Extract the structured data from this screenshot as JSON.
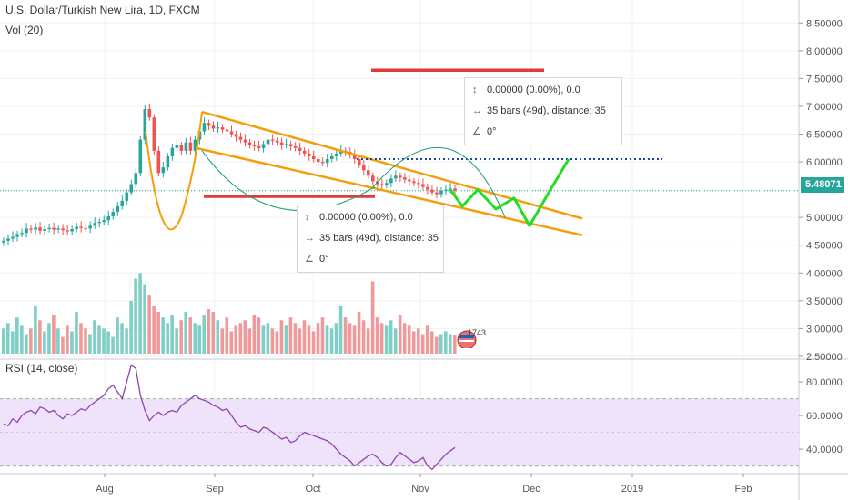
{
  "header": {
    "title": "U.S. Dollar/Turkish New Lira, 1D, FXCM",
    "volume_label": "Vol (20)",
    "rsi_label": "RSI (14, close)"
  },
  "chart_data": [
    {
      "type": "candlestick",
      "title": "U.S. Dollar/Turkish New Lira, 1D, FXCM",
      "y_ticks": [
        "8.50000",
        "8.00000",
        "7.50000",
        "7.00000",
        "6.50000",
        "6.00000",
        "5.48071",
        "5.00000",
        "4.50000",
        "4.00000",
        "3.50000",
        "3.00000",
        "2.50000"
      ],
      "ylim": [
        2.45,
        8.75
      ],
      "last_price": "5.48071",
      "x_ticks": [
        "Aug",
        "Sep",
        "Oct",
        "Nov",
        "Dec",
        "2019",
        "Feb"
      ],
      "close_series": [
        4.58,
        4.62,
        4.65,
        4.7,
        4.72,
        4.8,
        4.78,
        4.82,
        4.76,
        4.79,
        4.81,
        4.78,
        4.8,
        4.77,
        4.75,
        4.79,
        4.83,
        4.81,
        4.8,
        4.85,
        4.9,
        4.92,
        4.95,
        5.02,
        5.1,
        5.2,
        5.3,
        5.45,
        5.6,
        5.8,
        6.4,
        6.95,
        6.8,
        6.2,
        5.8,
        5.9,
        6.1,
        6.25,
        6.3,
        6.2,
        6.35,
        6.2,
        6.4,
        6.55,
        6.7,
        6.65,
        6.6,
        6.62,
        6.58,
        6.55,
        6.5,
        6.45,
        6.4,
        6.35,
        6.3,
        6.28,
        6.25,
        6.32,
        6.4,
        6.38,
        6.35,
        6.3,
        6.32,
        6.28,
        6.25,
        6.2,
        6.15,
        6.1,
        6.05,
        6.0,
        5.98,
        6.05,
        6.1,
        6.15,
        6.2,
        6.18,
        6.12,
        6.05,
        5.95,
        5.85,
        5.75,
        5.65,
        5.6,
        5.58,
        5.62,
        5.7,
        5.75,
        5.72,
        5.68,
        5.65,
        5.62,
        5.6,
        5.55,
        5.5,
        5.45,
        5.42,
        5.48,
        5.5,
        5.52,
        5.48
      ],
      "annotations": [
        {
          "label": "0.00000 (0.00%), 0.0",
          "bars": "35 bars (49d), distance: 35",
          "angle": "0°"
        },
        {
          "label": "0.00000 (0.00%), 0.0",
          "bars": "35 bars (49d), distance: 35",
          "angle": "0°"
        }
      ],
      "dotted_level": 6.05,
      "red_lines": [
        7.65,
        5.38
      ]
    },
    {
      "type": "bar",
      "title": "Vol (20)",
      "values": [
        3.0,
        3.1,
        2.95,
        3.2,
        3.05,
        2.9,
        3.0,
        3.4,
        3.15,
        2.95,
        3.1,
        3.25,
        3.0,
        2.85,
        3.05,
        2.95,
        3.3,
        3.1,
        3.0,
        2.9,
        3.15,
        3.05,
        3.0,
        2.95,
        2.85,
        3.2,
        3.1,
        3.0,
        3.5,
        3.9,
        4.0,
        3.8,
        3.6,
        3.4,
        3.3,
        3.2,
        3.1,
        3.25,
        3.0,
        3.15,
        3.3,
        3.2,
        3.1,
        3.05,
        3.25,
        3.35,
        3.3,
        3.15,
        3.0,
        3.2,
        2.95,
        3.05,
        3.1,
        3.15,
        3.0,
        3.25,
        3.2,
        3.05,
        3.1,
        3.0,
        2.95,
        3.15,
        3.05,
        3.2,
        3.1,
        3.0,
        3.15,
        3.05,
        2.95,
        3.1,
        3.2,
        3.05,
        3.0,
        3.1,
        3.4,
        3.2,
        3.1,
        3.05,
        3.3,
        3.15,
        3.0,
        3.85,
        3.2,
        3.1,
        3.05,
        3.15,
        3.0,
        3.25,
        3.1,
        3.05,
        2.95,
        3.0,
        2.9,
        3.05,
        2.95,
        2.85,
        2.9,
        2.95,
        2.9,
        2.88
      ],
      "ylim": [
        2.45,
        4.1
      ],
      "badge_text": "1743"
    },
    {
      "type": "line",
      "title": "RSI (14, close)",
      "y_ticks": [
        "80.0000",
        "60.0000",
        "40.0000"
      ],
      "ylim": [
        26,
        93
      ],
      "band": [
        30,
        70
      ],
      "values": [
        55,
        54,
        58,
        56,
        60,
        62,
        63,
        61,
        65,
        64,
        62,
        63,
        60,
        58,
        61,
        60,
        62,
        64,
        63,
        66,
        68,
        70,
        72,
        76,
        78,
        74,
        70,
        80,
        90,
        88,
        72,
        63,
        57,
        60,
        62,
        60,
        62,
        63,
        62,
        66,
        68,
        70,
        72,
        70,
        69,
        68,
        66,
        65,
        63,
        64,
        60,
        56,
        53,
        54,
        52,
        51,
        50,
        53,
        52,
        50,
        48,
        46,
        47,
        44,
        45,
        48,
        50,
        49,
        48,
        47,
        46,
        45,
        43,
        40,
        37,
        35,
        33,
        30,
        32,
        34,
        36,
        37,
        35,
        32,
        30,
        31,
        35,
        38,
        36,
        34,
        32,
        33,
        35,
        30,
        28,
        31,
        34,
        37,
        39,
        41
      ],
      "x_ticks": [
        "Aug",
        "Sep",
        "Oct",
        "Nov",
        "Dec",
        "2019",
        "Feb"
      ]
    }
  ]
}
